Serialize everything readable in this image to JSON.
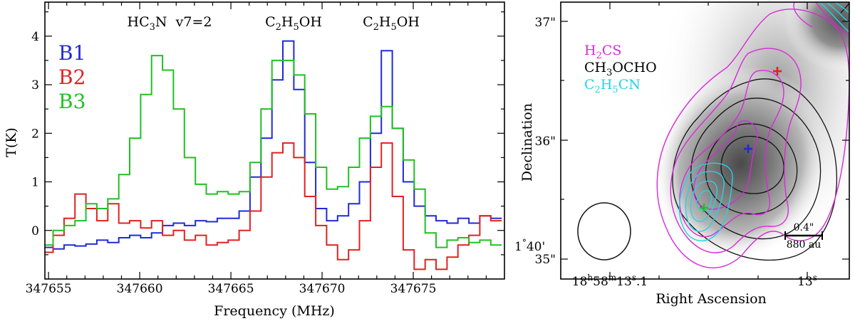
{
  "chart_data": [
    {
      "type": "line",
      "style": "step",
      "xlabel": "Frequency (MHz)",
      "ylabel": "T(K)",
      "xlim": [
        347654.8,
        347680.0
      ],
      "ylim": [
        -1.0,
        4.7
      ],
      "xticks": [
        347655,
        347660,
        347665,
        347670,
        347675
      ],
      "xtick_labels": [
        "347655",
        "347660",
        "347665",
        "347670",
        "347675"
      ],
      "yticks": [
        0,
        1,
        2,
        3,
        4
      ],
      "ytick_labels": [
        "0",
        "1",
        "2",
        "3",
        "4"
      ],
      "line_annotations": [
        {
          "label": "HC3N  v7=2",
          "base": "HC",
          "sub": "3",
          "rest": "N  v7=2",
          "freq": 347662.0
        },
        {
          "label": "C2H5OH",
          "base": "C",
          "sub": "2",
          "mid": "H",
          "sub2": "5",
          "rest": "OH",
          "freq": 347668.5
        },
        {
          "label": "C2H5OH",
          "base": "C",
          "sub": "2",
          "mid": "H",
          "sub2": "5",
          "rest": "OH",
          "freq": 347673.8
        }
      ],
      "legend": [
        {
          "name": "B1",
          "color": "#1f2bd6"
        },
        {
          "name": "B2",
          "color": "#e02222"
        },
        {
          "name": "B3",
          "color": "#22c022"
        }
      ],
      "legend_position": "top-left",
      "x": [
        347654.95,
        347655.55,
        347656.15,
        347656.75,
        347657.35,
        347657.95,
        347658.55,
        347659.15,
        347659.75,
        347660.35,
        347660.95,
        347661.55,
        347662.15,
        347662.75,
        347663.35,
        347663.95,
        347664.55,
        347665.15,
        347665.75,
        347666.35,
        347666.95,
        347667.55,
        347668.15,
        347668.75,
        347669.35,
        347669.95,
        347670.55,
        347671.15,
        347671.75,
        347672.35,
        347672.95,
        347673.55,
        347674.15,
        347674.75,
        347675.35,
        347675.95,
        347676.55,
        347677.15,
        347677.75,
        347678.35,
        347678.95,
        347679.55
      ],
      "series": [
        {
          "name": "B1",
          "color": "#1f2bd6",
          "values": [
            -0.35,
            -0.38,
            -0.3,
            -0.32,
            -0.28,
            -0.2,
            -0.25,
            -0.15,
            -0.1,
            -0.15,
            -0.05,
            0.1,
            0.15,
            0.1,
            0.2,
            0.18,
            0.25,
            0.25,
            0.4,
            1.1,
            1.9,
            3.1,
            3.9,
            2.9,
            1.4,
            0.45,
            0.2,
            0.3,
            0.55,
            1.0,
            2.0,
            3.7,
            2.1,
            1.0,
            0.5,
            0.3,
            0.2,
            0.15,
            0.25,
            0.15,
            0.3,
            0.25
          ]
        },
        {
          "name": "B2",
          "color": "#e02222",
          "values": [
            -0.45,
            -0.1,
            0.25,
            0.75,
            0.45,
            0.2,
            0.55,
            0.15,
            0.2,
            0.05,
            0.2,
            -0.1,
            0.0,
            -0.2,
            -0.1,
            -0.3,
            -0.25,
            -0.2,
            0.0,
            0.4,
            1.1,
            1.6,
            1.8,
            1.5,
            0.7,
            0.1,
            -0.3,
            -0.6,
            -0.4,
            0.2,
            1.3,
            1.8,
            0.7,
            -0.4,
            -0.8,
            -0.6,
            -0.8,
            -0.55,
            -0.3,
            -0.1,
            0.3,
            0.2
          ]
        },
        {
          "name": "B3",
          "color": "#22c022",
          "values": [
            -0.3,
            0.0,
            0.1,
            0.2,
            0.55,
            0.45,
            0.65,
            1.15,
            1.9,
            2.8,
            3.6,
            3.3,
            2.5,
            1.5,
            0.95,
            0.75,
            0.8,
            0.75,
            0.8,
            1.4,
            2.5,
            3.5,
            3.5,
            3.2,
            2.4,
            1.3,
            0.85,
            0.9,
            1.3,
            1.9,
            2.35,
            2.55,
            2.1,
            1.45,
            0.85,
            -0.05,
            -0.35,
            -0.2,
            -0.15,
            -0.25,
            -0.2,
            -0.3
          ]
        }
      ]
    },
    {
      "type": "contour",
      "xlabel": "Right Ascension",
      "ylabel": "Declination",
      "ra_tick_labels": [
        {
          "h": "18",
          "hs": "h",
          "m": "58",
          "ms": "m",
          "s": "13",
          "ss": "s",
          "frac": ".1"
        },
        {
          "s": "13",
          "ss": "s"
        }
      ],
      "dec_tick_labels": [
        "37\"",
        "36\"",
        "35\""
      ],
      "dec_prefix": {
        "deg": "1",
        "degs": "°",
        "min": "40'"
      },
      "legend": [
        {
          "label": "H2CS",
          "base": "H",
          "sub": "2",
          "rest": "CS",
          "color": "#d929d9"
        },
        {
          "label": "CH3OCHO",
          "base": "CH",
          "sub": "3",
          "rest": "OCHO",
          "color": "#000000"
        },
        {
          "label": "C2H5CN",
          "base": "C",
          "sub": "2",
          "mid": "H",
          "sub2": "5",
          "rest": "CN",
          "color": "#22d4e6"
        }
      ],
      "legend_position": "top-left",
      "scale_bar": {
        "angular": "0.4\"",
        "physical": "880 au"
      },
      "markers": [
        {
          "name": "B1",
          "color": "#1f2bd6"
        },
        {
          "name": "B2",
          "color": "#e02222"
        },
        {
          "name": "B3",
          "color": "#22c022"
        }
      ],
      "beam": "ellipse, bottom-left"
    }
  ]
}
